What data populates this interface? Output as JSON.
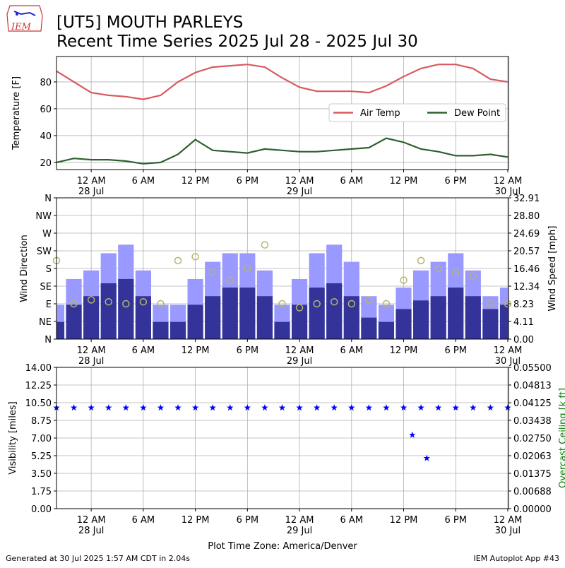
{
  "header": {
    "logo": "IEM",
    "title": "[UT5] MOUTH PARLEYS",
    "subtitle": "Recent Time Series 2025 Jul 28 - 2025 Jul 30"
  },
  "footer": {
    "left": "Generated at 30 Jul 2025 1:57 AM CDT in 2.04s",
    "right": "IEM Autoplot App #43",
    "xlabel": "Plot Time Zone: America/Denver"
  },
  "chart_data": [
    {
      "type": "line",
      "ylabel": "Temperature [F]",
      "grid": true,
      "legend": "upper right",
      "xlim": [
        "2025-07-27T20:00",
        "2025-07-30T00:05"
      ],
      "xticks": [
        {
          "value": "2025-07-28T00:00",
          "label": "12 AM",
          "date": "28 Jul"
        },
        {
          "value": "2025-07-28T06:00",
          "label": "6 AM"
        },
        {
          "value": "2025-07-28T12:00",
          "label": "12 PM"
        },
        {
          "value": "2025-07-28T18:00",
          "label": "6 PM"
        },
        {
          "value": "2025-07-29T00:00",
          "label": "12 AM",
          "date": "29 Jul"
        },
        {
          "value": "2025-07-29T06:00",
          "label": "6 AM"
        },
        {
          "value": "2025-07-29T12:00",
          "label": "12 PM"
        },
        {
          "value": "2025-07-29T18:00",
          "label": "6 PM"
        },
        {
          "value": "2025-07-30T00:00",
          "label": "12 AM",
          "date": "30 Jul"
        }
      ],
      "ylim": [
        14.7,
        98.9
      ],
      "yticks": [
        20,
        40,
        60,
        80
      ],
      "x": [
        "2025-07-27T20:00",
        "2025-07-27T22:00",
        "2025-07-28T00:00",
        "2025-07-28T02:00",
        "2025-07-28T04:00",
        "2025-07-28T06:00",
        "2025-07-28T08:00",
        "2025-07-28T10:00",
        "2025-07-28T12:00",
        "2025-07-28T14:00",
        "2025-07-28T16:00",
        "2025-07-28T18:00",
        "2025-07-28T20:00",
        "2025-07-28T22:00",
        "2025-07-29T00:00",
        "2025-07-29T02:00",
        "2025-07-29T04:00",
        "2025-07-29T06:00",
        "2025-07-29T08:00",
        "2025-07-29T10:00",
        "2025-07-29T12:00",
        "2025-07-29T14:00",
        "2025-07-29T16:00",
        "2025-07-29T18:00",
        "2025-07-29T20:00",
        "2025-07-29T22:00",
        "2025-07-30T00:00"
      ],
      "series": [
        {
          "name": "Air Temp",
          "color": "#d9595f",
          "values": [
            88,
            80,
            72,
            70,
            69,
            67,
            70,
            80,
            87,
            91,
            92,
            93,
            91,
            83,
            76,
            73,
            73,
            73,
            72,
            77,
            84,
            90,
            93,
            93,
            90,
            82,
            80
          ]
        },
        {
          "name": "Dew Point",
          "color": "#2e6030",
          "values": [
            20,
            23,
            22,
            22,
            21,
            19,
            20,
            26,
            37,
            29,
            28,
            27,
            30,
            29,
            28,
            28,
            29,
            30,
            31,
            38,
            35,
            30,
            28,
            25,
            25,
            26,
            24
          ]
        }
      ]
    },
    {
      "type": "bar",
      "ylabel": "Wind Direction",
      "y2label": "Wind Speed [mph]",
      "grid": true,
      "xlim": [
        "2025-07-27T20:00",
        "2025-07-30T00:05"
      ],
      "xticks": [
        {
          "value": "2025-07-28T00:00",
          "label": "12 AM",
          "date": "28 Jul"
        },
        {
          "value": "2025-07-28T06:00",
          "label": "6 AM"
        },
        {
          "value": "2025-07-28T12:00",
          "label": "12 PM"
        },
        {
          "value": "2025-07-28T18:00",
          "label": "6 PM"
        },
        {
          "value": "2025-07-29T00:00",
          "label": "12 AM",
          "date": "29 Jul"
        },
        {
          "value": "2025-07-29T06:00",
          "label": "6 AM"
        },
        {
          "value": "2025-07-29T12:00",
          "label": "12 PM"
        },
        {
          "value": "2025-07-29T18:00",
          "label": "6 PM"
        },
        {
          "value": "2025-07-30T00:00",
          "label": "12 AM",
          "date": "30 Jul"
        }
      ],
      "ylim": [
        0,
        360
      ],
      "yticks": [
        {
          "value": 0,
          "label": "N"
        },
        {
          "value": 45,
          "label": "NE"
        },
        {
          "value": 90,
          "label": "E"
        },
        {
          "value": 135,
          "label": "SE"
        },
        {
          "value": 180,
          "label": "S"
        },
        {
          "value": 225,
          "label": "SW"
        },
        {
          "value": 270,
          "label": "W"
        },
        {
          "value": 315,
          "label": "NW"
        },
        {
          "value": 360,
          "label": "N"
        }
      ],
      "y2lim": [
        0,
        32.91
      ],
      "y2ticks": [
        {
          "value": 0,
          "label": "0.00"
        },
        4.11,
        8.23,
        12.34,
        16.46,
        20.57,
        24.69,
        {
          "value": 28.8,
          "label": "28.80"
        },
        32.91
      ],
      "x": [
        "2025-07-27T20:00",
        "2025-07-27T22:00",
        "2025-07-28T00:00",
        "2025-07-28T02:00",
        "2025-07-28T04:00",
        "2025-07-28T06:00",
        "2025-07-28T08:00",
        "2025-07-28T10:00",
        "2025-07-28T12:00",
        "2025-07-28T14:00",
        "2025-07-28T16:00",
        "2025-07-28T18:00",
        "2025-07-28T20:00",
        "2025-07-28T22:00",
        "2025-07-29T00:00",
        "2025-07-29T02:00",
        "2025-07-29T04:00",
        "2025-07-29T06:00",
        "2025-07-29T08:00",
        "2025-07-29T10:00",
        "2025-07-29T12:00",
        "2025-07-29T14:00",
        "2025-07-29T16:00",
        "2025-07-29T18:00",
        "2025-07-29T20:00",
        "2025-07-29T22:00",
        "2025-07-30T00:00"
      ],
      "series": [
        {
          "type": "bar",
          "axis": "y2",
          "color": "#9999ff",
          "values": [
            8,
            14,
            16,
            20,
            22,
            16,
            8,
            8,
            14,
            18,
            20,
            20,
            16,
            8,
            14,
            20,
            22,
            18,
            10,
            8,
            12,
            16,
            18,
            20,
            16,
            10,
            12
          ]
        },
        {
          "type": "bar",
          "axis": "y2",
          "color": "#333399",
          "values": [
            4,
            8,
            10,
            13,
            14,
            10,
            4,
            4,
            8,
            10,
            12,
            12,
            10,
            4,
            8,
            12,
            13,
            10,
            5,
            4,
            7,
            9,
            10,
            12,
            10,
            7,
            8
          ]
        },
        {
          "type": "scatter",
          "color": "#b5b56a",
          "values": [
            200,
            90,
            100,
            95,
            90,
            95,
            90,
            200,
            210,
            170,
            150,
            180,
            240,
            90,
            80,
            90,
            95,
            90,
            100,
            90,
            150,
            200,
            180,
            170,
            160,
            90,
            90
          ]
        }
      ]
    },
    {
      "type": "scatter",
      "ylabel": "Visibility [miles]",
      "y2label": "Overcast Ceiling [k ft]",
      "y2color": "#008000",
      "grid": true,
      "xlim": [
        "2025-07-27T20:00",
        "2025-07-30T00:05"
      ],
      "xticks": [
        {
          "value": "2025-07-28T00:00",
          "label": "12 AM",
          "date": "28 Jul"
        },
        {
          "value": "2025-07-28T06:00",
          "label": "6 AM"
        },
        {
          "value": "2025-07-28T12:00",
          "label": "12 PM"
        },
        {
          "value": "2025-07-28T18:00",
          "label": "6 PM"
        },
        {
          "value": "2025-07-29T00:00",
          "label": "12 AM",
          "date": "29 Jul"
        },
        {
          "value": "2025-07-29T06:00",
          "label": "6 AM"
        },
        {
          "value": "2025-07-29T12:00",
          "label": "12 PM"
        },
        {
          "value": "2025-07-29T18:00",
          "label": "6 PM"
        },
        {
          "value": "2025-07-30T00:00",
          "label": "12 AM",
          "date": "30 Jul"
        }
      ],
      "ylim": [
        0,
        14
      ],
      "yticks": [
        {
          "value": 0,
          "label": "0.00"
        },
        1.75,
        {
          "value": 3.5,
          "label": "3.50"
        },
        5.25,
        {
          "value": 7,
          "label": "7.00"
        },
        8.75,
        {
          "value": 10.5,
          "label": "10.50"
        },
        12.25,
        {
          "value": 14,
          "label": "14.00"
        }
      ],
      "y2lim": [
        0,
        0.055
      ],
      "y2ticks": [
        {
          "value": 0,
          "label": "0.00000"
        },
        0.00688,
        0.01375,
        0.02063,
        {
          "value": 0.0275,
          "label": "0.02750"
        },
        0.03438,
        0.04125,
        0.04813,
        {
          "value": 0.055,
          "label": "0.05500"
        }
      ],
      "x": [
        "2025-07-27T20:00",
        "2025-07-27T22:00",
        "2025-07-28T00:00",
        "2025-07-28T02:00",
        "2025-07-28T04:00",
        "2025-07-28T06:00",
        "2025-07-28T08:00",
        "2025-07-28T10:00",
        "2025-07-28T12:00",
        "2025-07-28T14:00",
        "2025-07-28T16:00",
        "2025-07-28T18:00",
        "2025-07-28T20:00",
        "2025-07-28T22:00",
        "2025-07-29T00:00",
        "2025-07-29T02:00",
        "2025-07-29T04:00",
        "2025-07-29T06:00",
        "2025-07-29T08:00",
        "2025-07-29T10:00",
        "2025-07-29T12:00",
        "2025-07-29T13:00",
        "2025-07-29T14:00",
        "2025-07-29T14:40",
        "2025-07-29T16:00",
        "2025-07-29T18:00",
        "2025-07-29T20:00",
        "2025-07-29T22:00",
        "2025-07-30T00:00"
      ],
      "series": [
        {
          "color": "#0000ff",
          "values": [
            10,
            10,
            10,
            10,
            10,
            10,
            10,
            10,
            10,
            10,
            10,
            10,
            10,
            10,
            10,
            10,
            10,
            10,
            10,
            10,
            10,
            7.3,
            10,
            5,
            10,
            10,
            10,
            10,
            10
          ]
        }
      ]
    }
  ]
}
